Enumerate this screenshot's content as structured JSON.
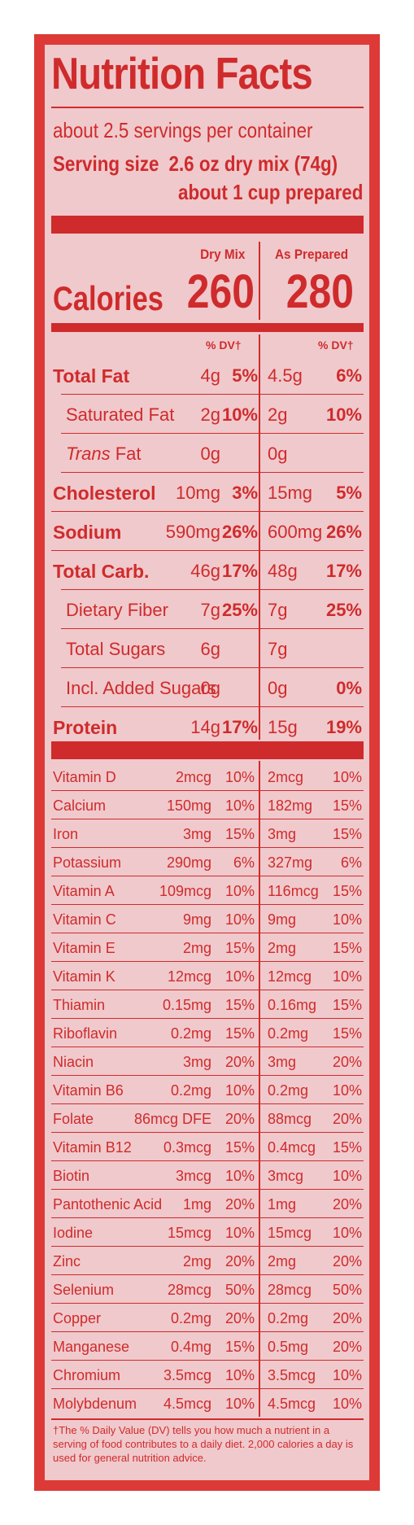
{
  "title": "Nutrition Facts",
  "servings": "about 2.5 servings per container",
  "serving_size_label": "Serving size",
  "serving_size_value": "2.6 oz dry mix (74g)",
  "prepared_line": "about 1 cup prepared",
  "columns": {
    "dry": "Dry Mix",
    "prepared": "As Prepared"
  },
  "calories": {
    "label": "Calories",
    "dry": "260",
    "prepared": "280"
  },
  "dv_header": "% DV†",
  "macros": [
    {
      "name": "Total Fat",
      "bold": true,
      "indent": 0,
      "dry_amt": "4g",
      "dry_dv": "5%",
      "prep_amt": "4.5g",
      "prep_dv": "6%"
    },
    {
      "name": "Saturated Fat",
      "bold": false,
      "indent": 1,
      "dry_amt": "2g",
      "dry_dv": "10%",
      "prep_amt": "2g",
      "prep_dv": "10%"
    },
    {
      "name": "Trans Fat",
      "bold": false,
      "indent": 1,
      "italic_prefix": "Trans",
      "dry_amt": "0g",
      "dry_dv": "",
      "prep_amt": "0g",
      "prep_dv": ""
    },
    {
      "name": "Cholesterol",
      "bold": true,
      "indent": 0,
      "dry_amt": "10mg",
      "dry_dv": "3%",
      "prep_amt": "15mg",
      "prep_dv": "5%"
    },
    {
      "name": "Sodium",
      "bold": true,
      "indent": 0,
      "dry_amt": "590mg",
      "dry_dv": "26%",
      "prep_amt": "600mg",
      "prep_dv": "26%"
    },
    {
      "name": "Total Carb.",
      "bold": true,
      "indent": 0,
      "dry_amt": "46g",
      "dry_dv": "17%",
      "prep_amt": "48g",
      "prep_dv": "17%"
    },
    {
      "name": "Dietary Fiber",
      "bold": false,
      "indent": 1,
      "dry_amt": "7g",
      "dry_dv": "25%",
      "prep_amt": "7g",
      "prep_dv": "25%"
    },
    {
      "name": "Total Sugars",
      "bold": false,
      "indent": 1,
      "dry_amt": "6g",
      "dry_dv": "",
      "prep_amt": "7g",
      "prep_dv": ""
    },
    {
      "name": "Incl. Added Sugars",
      "bold": false,
      "indent": 2,
      "dry_amt": "0g",
      "dry_dv": "",
      "prep_amt": "0g",
      "prep_dv": "0%"
    },
    {
      "name": "Protein",
      "bold": true,
      "indent": 0,
      "dry_amt": "14g",
      "dry_dv": "17%",
      "prep_amt": "15g",
      "prep_dv": "19%"
    }
  ],
  "vitamins": [
    {
      "name": "Vitamin D",
      "dry_amt": "2mcg",
      "dry_dv": "10%",
      "prep_amt": "2mcg",
      "prep_dv": "10%"
    },
    {
      "name": "Calcium",
      "dry_amt": "150mg",
      "dry_dv": "10%",
      "prep_amt": "182mg",
      "prep_dv": "15%"
    },
    {
      "name": "Iron",
      "dry_amt": "3mg",
      "dry_dv": "15%",
      "prep_amt": "3mg",
      "prep_dv": "15%"
    },
    {
      "name": "Potassium",
      "dry_amt": "290mg",
      "dry_dv": "6%",
      "prep_amt": "327mg",
      "prep_dv": "6%"
    },
    {
      "name": "Vitamin A",
      "dry_amt": "109mcg",
      "dry_dv": "10%",
      "prep_amt": "116mcg",
      "prep_dv": "15%"
    },
    {
      "name": "Vitamin C",
      "dry_amt": "9mg",
      "dry_dv": "10%",
      "prep_amt": "9mg",
      "prep_dv": "10%"
    },
    {
      "name": "Vitamin E",
      "dry_amt": "2mg",
      "dry_dv": "15%",
      "prep_amt": "2mg",
      "prep_dv": "15%"
    },
    {
      "name": "Vitamin K",
      "dry_amt": "12mcg",
      "dry_dv": "10%",
      "prep_amt": "12mcg",
      "prep_dv": "10%"
    },
    {
      "name": "Thiamin",
      "dry_amt": "0.15mg",
      "dry_dv": "15%",
      "prep_amt": "0.16mg",
      "prep_dv": "15%"
    },
    {
      "name": "Riboflavin",
      "dry_amt": "0.2mg",
      "dry_dv": "15%",
      "prep_amt": "0.2mg",
      "prep_dv": "15%"
    },
    {
      "name": "Niacin",
      "dry_amt": "3mg",
      "dry_dv": "20%",
      "prep_amt": "3mg",
      "prep_dv": "20%"
    },
    {
      "name": "Vitamin B6",
      "dry_amt": "0.2mg",
      "dry_dv": "10%",
      "prep_amt": "0.2mg",
      "prep_dv": "10%"
    },
    {
      "name": "Folate",
      "dry_amt": "86mcg DFE",
      "dry_dv": "20%",
      "prep_amt": "88mcg",
      "prep_dv": "20%"
    },
    {
      "name": "Vitamin B12",
      "dry_amt": "0.3mcg",
      "dry_dv": "15%",
      "prep_amt": "0.4mcg",
      "prep_dv": "15%"
    },
    {
      "name": "Biotin",
      "dry_amt": "3mcg",
      "dry_dv": "10%",
      "prep_amt": "3mcg",
      "prep_dv": "10%"
    },
    {
      "name": "Pantothenic Acid",
      "dry_amt": "1mg",
      "dry_dv": "20%",
      "prep_amt": "1mg",
      "prep_dv": "20%"
    },
    {
      "name": "Iodine",
      "dry_amt": "15mcg",
      "dry_dv": "10%",
      "prep_amt": "15mcg",
      "prep_dv": "10%"
    },
    {
      "name": "Zinc",
      "dry_amt": "2mg",
      "dry_dv": "20%",
      "prep_amt": "2mg",
      "prep_dv": "20%"
    },
    {
      "name": "Selenium",
      "dry_amt": "28mcg",
      "dry_dv": "50%",
      "prep_amt": "28mcg",
      "prep_dv": "50%"
    },
    {
      "name": "Copper",
      "dry_amt": "0.2mg",
      "dry_dv": "20%",
      "prep_amt": "0.2mg",
      "prep_dv": "20%"
    },
    {
      "name": "Manganese",
      "dry_amt": "0.4mg",
      "dry_dv": "15%",
      "prep_amt": "0.5mg",
      "prep_dv": "20%"
    },
    {
      "name": "Chromium",
      "dry_amt": "3.5mcg",
      "dry_dv": "10%",
      "prep_amt": "3.5mcg",
      "prep_dv": "10%"
    },
    {
      "name": "Molybdenum",
      "dry_amt": "4.5mcg",
      "dry_dv": "10%",
      "prep_amt": "4.5mcg",
      "prep_dv": "10%"
    }
  ],
  "footnote": "†The % Daily Value (DV) tells you how much a nutrient in a serving of food contributes to a daily diet. 2,000 calories a day is used for general nutrition advice.",
  "colors": {
    "label_red": "#cf2b2c",
    "border_red": "#dd3a37",
    "background_pink": "#f0c9cc"
  }
}
